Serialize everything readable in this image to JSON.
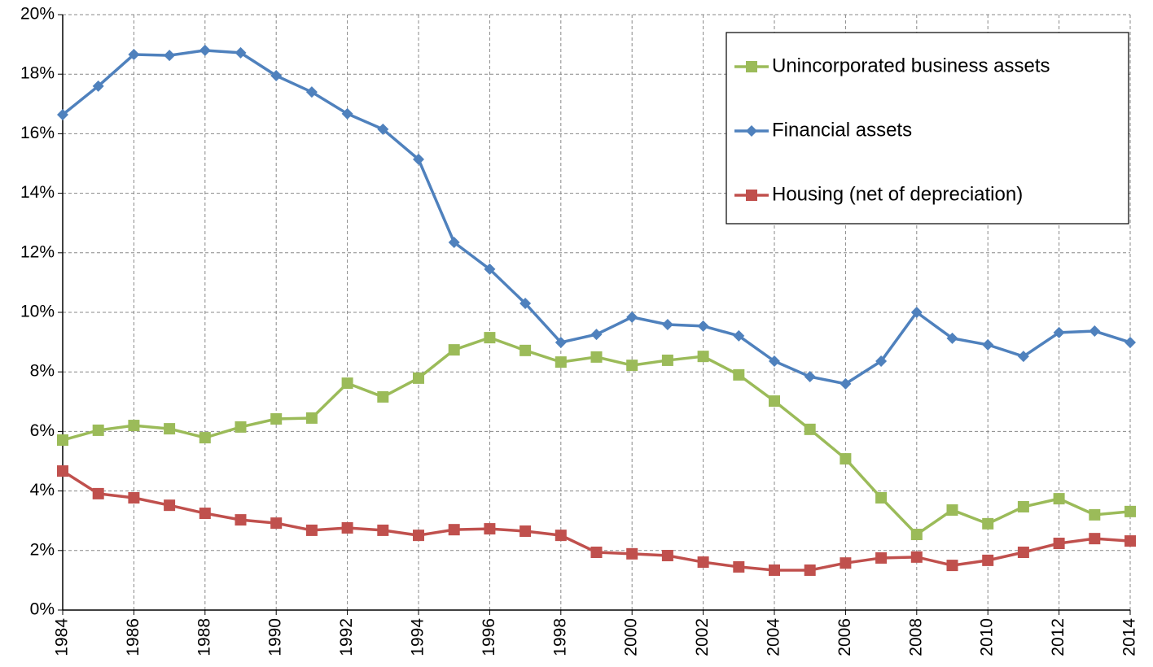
{
  "chart_data": {
    "type": "line",
    "x": [
      1984,
      1985,
      1986,
      1987,
      1988,
      1989,
      1990,
      1991,
      1992,
      1993,
      1994,
      1995,
      1996,
      1997,
      1998,
      1999,
      2000,
      2001,
      2002,
      2003,
      2004,
      2005,
      2006,
      2007,
      2008,
      2009,
      2010,
      2011,
      2012,
      2013,
      2014
    ],
    "xlim": [
      1984,
      2014
    ],
    "xticks": [
      1984,
      1986,
      1988,
      1990,
      1992,
      1994,
      1996,
      1998,
      2000,
      2002,
      2004,
      2006,
      2008,
      2010,
      2012,
      2014
    ],
    "ylim": [
      0,
      20
    ],
    "yticks": [
      {
        "value": 0,
        "label": "0%"
      },
      {
        "value": 2,
        "label": "2%"
      },
      {
        "value": 4,
        "label": "4%"
      },
      {
        "value": 6,
        "label": "6%"
      },
      {
        "value": 8,
        "label": "8%"
      },
      {
        "value": 10,
        "label": "10%"
      },
      {
        "value": 12,
        "label": "12%"
      },
      {
        "value": 14,
        "label": "14%"
      },
      {
        "value": 16,
        "label": "16%"
      },
      {
        "value": 18,
        "label": "18%"
      },
      {
        "value": 20,
        "label": "20%"
      }
    ],
    "grid": true,
    "legend": "upper right",
    "series": [
      {
        "name": "Unincorporated business assets",
        "color": "#9bbb59",
        "marker": "square",
        "values": [
          5.71,
          6.04,
          6.2,
          6.09,
          5.79,
          6.15,
          6.42,
          6.45,
          7.62,
          7.16,
          7.79,
          8.74,
          9.15,
          8.72,
          8.33,
          8.5,
          8.22,
          8.39,
          8.52,
          7.9,
          7.02,
          6.07,
          5.08,
          3.77,
          2.54,
          3.36,
          2.9,
          3.47,
          3.74,
          3.2,
          3.31
        ]
      },
      {
        "name": "Financial assets",
        "color": "#4f81bd",
        "marker": "diamond",
        "values": [
          16.64,
          17.6,
          18.66,
          18.63,
          18.8,
          18.72,
          17.95,
          17.4,
          16.67,
          16.15,
          15.14,
          12.35,
          11.45,
          10.3,
          8.99,
          9.26,
          9.84,
          9.59,
          9.54,
          9.21,
          8.36,
          7.84,
          7.6,
          8.36,
          10.0,
          9.13,
          8.91,
          8.52,
          9.32,
          9.37,
          8.99
        ]
      },
      {
        "name": "Housing (net of depreciation)",
        "color": "#c0504d",
        "marker": "square",
        "values": [
          4.67,
          3.91,
          3.77,
          3.52,
          3.25,
          3.03,
          2.92,
          2.68,
          2.76,
          2.68,
          2.51,
          2.7,
          2.73,
          2.65,
          2.51,
          1.94,
          1.89,
          1.83,
          1.61,
          1.45,
          1.34,
          1.34,
          1.58,
          1.75,
          1.78,
          1.5,
          1.67,
          1.94,
          2.24,
          2.4,
          2.32
        ]
      }
    ]
  }
}
